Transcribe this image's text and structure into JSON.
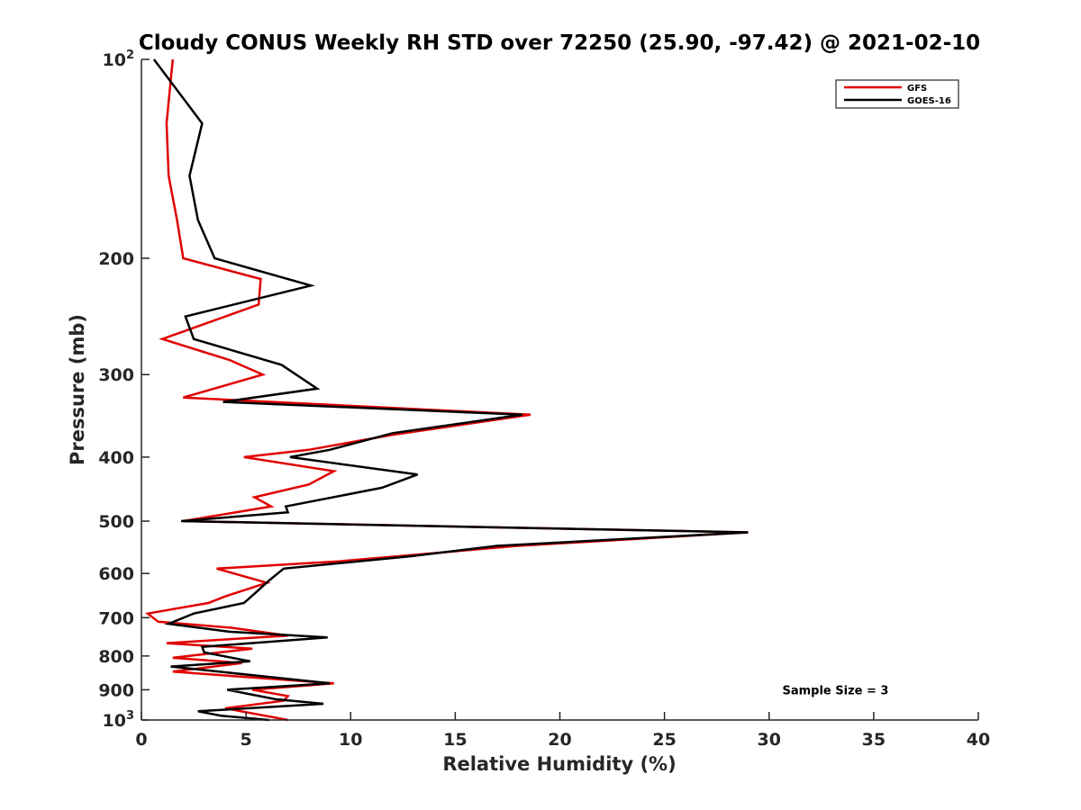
{
  "chart_data": {
    "type": "line",
    "title": "Cloudy CONUS Weekly RH STD over 72250 (25.90, -97.42) @ 2021-02-10",
    "xlabel": "Relative Humidity (%)",
    "ylabel": "Pressure (mb)",
    "xlim": [
      0,
      40
    ],
    "ylim": [
      100,
      1000
    ],
    "y_scale": "log",
    "y_reversed": true,
    "grid": false,
    "legend_position": "top-right",
    "x_ticks": [
      0,
      5,
      10,
      15,
      20,
      25,
      30,
      35,
      40
    ],
    "x_tick_labels": [
      "0",
      "5",
      "10",
      "15",
      "20",
      "25",
      "30",
      "35",
      "40"
    ],
    "y_ticks": [
      100,
      200,
      300,
      400,
      500,
      600,
      700,
      800,
      900,
      1000
    ],
    "y_tick_labels": [
      {
        "base": "10",
        "sup": "2"
      },
      {
        "base": "200"
      },
      {
        "base": "300"
      },
      {
        "base": "400"
      },
      {
        "base": "500"
      },
      {
        "base": "600"
      },
      {
        "base": "700"
      },
      {
        "base": "800"
      },
      {
        "base": "900"
      },
      {
        "base": "10",
        "sup": "3"
      }
    ],
    "series": [
      {
        "name": "GFS",
        "color": "#e00000",
        "points": [
          [
            1.5,
            100
          ],
          [
            1.2,
            125
          ],
          [
            1.3,
            150
          ],
          [
            1.7,
            175
          ],
          [
            2.0,
            200
          ],
          [
            5.7,
            215
          ],
          [
            5.6,
            235
          ],
          [
            1.0,
            265
          ],
          [
            4.2,
            285
          ],
          [
            5.8,
            300
          ],
          [
            2.0,
            325
          ],
          [
            18.6,
            345
          ],
          [
            12.0,
            370
          ],
          [
            8.0,
            390
          ],
          [
            4.9,
            400
          ],
          [
            9.2,
            420
          ],
          [
            8.0,
            440
          ],
          [
            5.4,
            460
          ],
          [
            6.2,
            475
          ],
          [
            2.0,
            500
          ],
          [
            29.0,
            520
          ],
          [
            18.0,
            545
          ],
          [
            9.5,
            575
          ],
          [
            3.6,
            590
          ],
          [
            6.0,
            620
          ],
          [
            4.0,
            650
          ],
          [
            3.2,
            665
          ],
          [
            0.3,
            690
          ],
          [
            0.8,
            710
          ],
          [
            4.3,
            725
          ],
          [
            7.0,
            745
          ],
          [
            1.2,
            765
          ],
          [
            5.3,
            780
          ],
          [
            1.5,
            805
          ],
          [
            4.8,
            820
          ],
          [
            1.5,
            845
          ],
          [
            9.2,
            880
          ],
          [
            5.3,
            900
          ],
          [
            7.0,
            920
          ],
          [
            6.8,
            935
          ],
          [
            4.0,
            960
          ],
          [
            7.0,
            1000
          ]
        ]
      },
      {
        "name": "GOES-16",
        "color": "#000000",
        "points": [
          [
            0.6,
            100
          ],
          [
            2.9,
            125
          ],
          [
            2.3,
            150
          ],
          [
            2.7,
            175
          ],
          [
            3.5,
            200
          ],
          [
            8.1,
            220
          ],
          [
            2.1,
            245
          ],
          [
            2.5,
            265
          ],
          [
            6.7,
            290
          ],
          [
            8.4,
            315
          ],
          [
            3.9,
            330
          ],
          [
            18.2,
            345
          ],
          [
            12.0,
            368
          ],
          [
            9.0,
            390
          ],
          [
            7.1,
            400
          ],
          [
            13.2,
            425
          ],
          [
            11.5,
            445
          ],
          [
            6.9,
            475
          ],
          [
            7.0,
            485
          ],
          [
            1.9,
            500
          ],
          [
            29.0,
            520
          ],
          [
            17.0,
            545
          ],
          [
            12.9,
            565
          ],
          [
            6.8,
            590
          ],
          [
            6.1,
            615
          ],
          [
            5.5,
            640
          ],
          [
            4.9,
            665
          ],
          [
            2.5,
            690
          ],
          [
            1.3,
            715
          ],
          [
            4.2,
            735
          ],
          [
            8.9,
            750
          ],
          [
            2.9,
            775
          ],
          [
            3.0,
            790
          ],
          [
            5.2,
            815
          ],
          [
            1.4,
            830
          ],
          [
            9.0,
            880
          ],
          [
            4.1,
            900
          ],
          [
            6.4,
            930
          ],
          [
            8.7,
            945
          ],
          [
            2.7,
            970
          ],
          [
            3.8,
            985
          ],
          [
            6.1,
            1000
          ]
        ]
      }
    ],
    "annotations": [
      {
        "text": "Sample Size = 3",
        "x": 35.5,
        "y": 900
      }
    ]
  }
}
